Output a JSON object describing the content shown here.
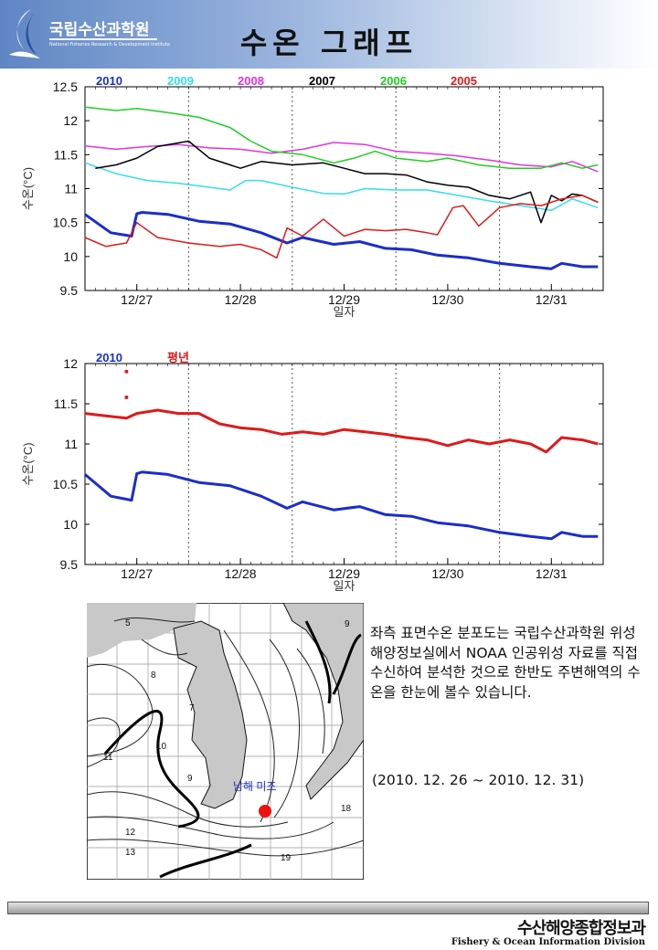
{
  "header": {
    "org_name": "국립수산과학원",
    "org_name_en": "National Fisheries Research & Development Institute",
    "title": "수온 그래프"
  },
  "colors": {
    "y2010": "#1a2ec8",
    "y2009": "#33dde8",
    "y2008": "#e033e0",
    "y2007": "#000000",
    "y2006": "#22cc22",
    "y2005": "#dd1a1a",
    "average": "#dd1a1a",
    "marker": "#ee1111"
  },
  "chart_data": [
    {
      "type": "line",
      "xlabel": "일자",
      "ylabel": "수온(°C)",
      "ylim": [
        9.5,
        12.5
      ],
      "yticks": [
        "9.5",
        "10",
        "10.5",
        "11",
        "11.5",
        "12",
        "12.5"
      ],
      "xlim": [
        26.5,
        31.5
      ],
      "xtick_labels": [
        {
          "label": "12/27",
          "x": 27
        },
        {
          "label": "12/28",
          "x": 28
        },
        {
          "label": "12/29",
          "x": 29
        },
        {
          "label": "12/30",
          "x": 30
        },
        {
          "label": "12/31",
          "x": 31
        }
      ],
      "day_dividers": [
        27.5,
        28.5,
        29.5,
        30.5
      ],
      "legend_placement": "top",
      "series": [
        {
          "name": "2010",
          "color": "#1a2ec8",
          "width": 3,
          "x": [
            26.5,
            26.75,
            26.95,
            27.0,
            27.05,
            27.3,
            27.6,
            27.9,
            28.2,
            28.45,
            28.6,
            28.9,
            29.15,
            29.4,
            29.65,
            29.9,
            30.2,
            30.5,
            30.8,
            31.0,
            31.1,
            31.3,
            31.45
          ],
          "y": [
            10.62,
            10.35,
            10.3,
            10.63,
            10.65,
            10.62,
            10.52,
            10.48,
            10.35,
            10.2,
            10.28,
            10.18,
            10.22,
            10.12,
            10.1,
            10.02,
            9.98,
            9.9,
            9.85,
            9.82,
            9.9,
            9.85,
            9.85
          ]
        },
        {
          "name": "2009",
          "color": "#33dde8",
          "width": 1.5,
          "x": [
            26.5,
            26.8,
            27.1,
            27.4,
            27.7,
            27.9,
            28.05,
            28.2,
            28.5,
            28.8,
            29.0,
            29.2,
            29.5,
            29.8,
            30.1,
            30.4,
            30.7,
            31.0,
            31.2,
            31.45
          ],
          "y": [
            11.38,
            11.22,
            11.12,
            11.08,
            11.02,
            10.98,
            11.12,
            11.12,
            11.02,
            10.93,
            10.92,
            11.0,
            10.98,
            10.98,
            10.9,
            10.82,
            10.75,
            10.68,
            10.85,
            10.72
          ]
        },
        {
          "name": "2008",
          "color": "#e033e0",
          "width": 1.5,
          "x": [
            26.5,
            26.8,
            27.1,
            27.4,
            27.7,
            28.0,
            28.3,
            28.6,
            28.9,
            29.2,
            29.5,
            29.8,
            30.1,
            30.4,
            30.7,
            31.0,
            31.2,
            31.45
          ],
          "y": [
            11.63,
            11.58,
            11.62,
            11.65,
            11.6,
            11.58,
            11.52,
            11.58,
            11.68,
            11.65,
            11.55,
            11.52,
            11.48,
            11.42,
            11.35,
            11.32,
            11.4,
            11.25
          ]
        },
        {
          "name": "2007",
          "color": "#000000",
          "width": 1.5,
          "x": [
            26.6,
            26.8,
            27.0,
            27.2,
            27.5,
            27.7,
            28.0,
            28.2,
            28.5,
            28.8,
            29.0,
            29.2,
            29.4,
            29.6,
            29.8,
            30.0,
            30.2,
            30.4,
            30.6,
            30.8,
            30.9,
            31.0,
            31.1,
            31.2,
            31.3,
            31.45
          ],
          "y": [
            11.3,
            11.35,
            11.45,
            11.62,
            11.7,
            11.45,
            11.3,
            11.4,
            11.35,
            11.38,
            11.3,
            11.22,
            11.22,
            11.2,
            11.1,
            11.05,
            11.02,
            10.9,
            10.85,
            10.95,
            10.5,
            10.9,
            10.82,
            10.92,
            10.9,
            10.8
          ]
        },
        {
          "name": "2006",
          "color": "#22cc22",
          "width": 1.5,
          "x": [
            26.5,
            26.8,
            27.0,
            27.3,
            27.6,
            27.9,
            28.1,
            28.3,
            28.6,
            28.9,
            29.1,
            29.3,
            29.5,
            29.8,
            30.0,
            30.3,
            30.6,
            30.9,
            31.1,
            31.3,
            31.45
          ],
          "y": [
            12.2,
            12.15,
            12.18,
            12.12,
            12.05,
            11.9,
            11.7,
            11.55,
            11.5,
            11.38,
            11.45,
            11.55,
            11.45,
            11.4,
            11.45,
            11.35,
            11.3,
            11.3,
            11.38,
            11.3,
            11.35
          ]
        },
        {
          "name": "2005",
          "color": "#dd1a1a",
          "width": 1.5,
          "x": [
            26.5,
            26.7,
            26.9,
            27.0,
            27.2,
            27.5,
            27.8,
            28.0,
            28.2,
            28.35,
            28.45,
            28.6,
            28.8,
            29.0,
            29.2,
            29.4,
            29.6,
            29.8,
            29.9,
            30.05,
            30.15,
            30.3,
            30.5,
            30.7,
            30.9,
            31.1,
            31.3,
            31.45
          ],
          "y": [
            10.28,
            10.15,
            10.2,
            10.5,
            10.28,
            10.2,
            10.15,
            10.18,
            10.1,
            9.98,
            10.42,
            10.3,
            10.55,
            10.3,
            10.4,
            10.38,
            10.4,
            10.35,
            10.32,
            10.72,
            10.75,
            10.45,
            10.72,
            10.78,
            10.75,
            10.85,
            10.9,
            10.8
          ]
        }
      ]
    },
    {
      "type": "line",
      "xlabel": "일자",
      "ylabel": "수온(°C)",
      "ylim": [
        9.5,
        12
      ],
      "yticks": [
        "9.5",
        "10",
        "10.5",
        "11",
        "11.5",
        "12"
      ],
      "xlim": [
        26.5,
        31.5
      ],
      "xtick_labels": [
        {
          "label": "12/27",
          "x": 27
        },
        {
          "label": "12/28",
          "x": 28
        },
        {
          "label": "12/29",
          "x": 29
        },
        {
          "label": "12/30",
          "x": 30
        },
        {
          "label": "12/31",
          "x": 31
        }
      ],
      "day_dividers": [
        27.5,
        28.5,
        29.5,
        30.5
      ],
      "legend_placement": "top-left",
      "series": [
        {
          "name": "2010",
          "color": "#1a2ec8",
          "width": 3,
          "x": [
            26.5,
            26.75,
            26.95,
            27.0,
            27.05,
            27.3,
            27.6,
            27.9,
            28.2,
            28.45,
            28.6,
            28.9,
            29.15,
            29.4,
            29.65,
            29.9,
            30.2,
            30.5,
            30.8,
            31.0,
            31.1,
            31.3,
            31.45
          ],
          "y": [
            10.62,
            10.35,
            10.3,
            10.63,
            10.65,
            10.62,
            10.52,
            10.48,
            10.35,
            10.2,
            10.28,
            10.18,
            10.22,
            10.12,
            10.1,
            10.02,
            9.98,
            9.9,
            9.85,
            9.82,
            9.9,
            9.85,
            9.85
          ]
        },
        {
          "name": "평년",
          "color": "#dd1a1a",
          "width": 3,
          "x": [
            26.5,
            26.7,
            26.9,
            27.0,
            27.2,
            27.4,
            27.6,
            27.8,
            28.0,
            28.2,
            28.4,
            28.6,
            28.8,
            29.0,
            29.2,
            29.4,
            29.6,
            29.8,
            30.0,
            30.2,
            30.4,
            30.6,
            30.8,
            30.95,
            31.1,
            31.3,
            31.45
          ],
          "y": [
            11.38,
            11.35,
            11.32,
            11.38,
            11.42,
            11.38,
            11.38,
            11.25,
            11.2,
            11.18,
            11.12,
            11.15,
            11.12,
            11.18,
            11.15,
            11.12,
            11.08,
            11.05,
            10.98,
            11.05,
            11.0,
            11.05,
            11.0,
            10.9,
            11.08,
            11.05,
            11.0
          ]
        }
      ],
      "scatter_points": [
        {
          "x": 26.9,
          "y": 11.9
        },
        {
          "x": 26.9,
          "y": 11.58
        }
      ]
    }
  ],
  "map": {
    "location_label": "남해 미조",
    "contour_labels": [
      "5",
      "8",
      "7",
      "9",
      "10",
      "11",
      "12",
      "13",
      "18",
      "19",
      "9"
    ]
  },
  "description": {
    "text": "좌측 표면수온 분포도는 국립수산과학원 위성해양정보실에서 NOAA 인공위성 자료를 직접 수신하여 분석한 것으로 한반도 주변해역의 수온을 한눈에 볼수 있습니다.",
    "period": "(2010. 12. 26 ~ 2010. 12. 31)"
  },
  "footer": {
    "org_ko": "수산해양종합정보과",
    "org_en": "Fishery & Ocean Information Division"
  }
}
